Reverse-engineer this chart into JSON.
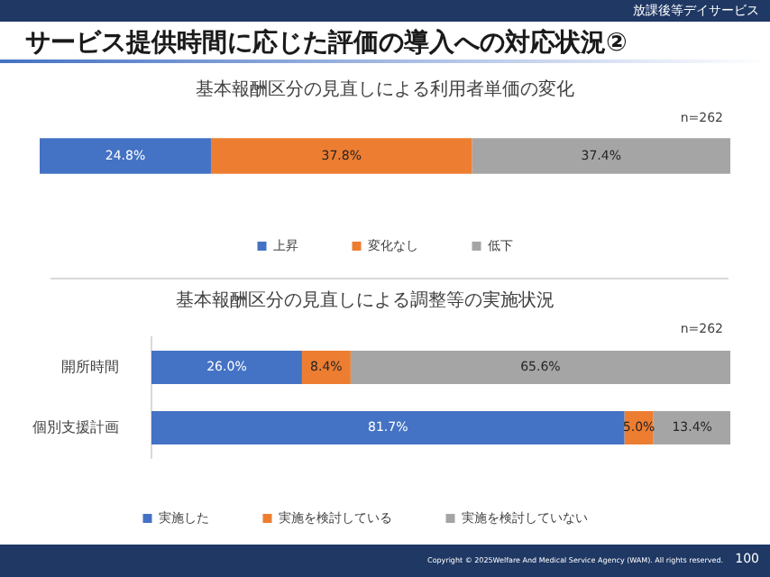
{
  "chart_data": [
    {
      "type": "other",
      "title": "サービス提供時間に応じた評価の導入への対応状況②",
      "annotations": [
        "放課後等デイサービス",
        "Copyright © 2025Welfare And Medical Service Agency (WAM). All rights reserved.",
        "100"
      ]
    },
    {
      "type": "bar",
      "orientation": "horizontal",
      "stacked": true,
      "title": "基本報酬区分の見直しによる利用者単価の変化",
      "categories": [
        null
      ],
      "xlim": [
        0,
        100
      ],
      "legend": "bottom",
      "tick_labels": false,
      "annotations": [
        "n=262"
      ],
      "series": [
        {
          "name": "上昇",
          "color": "#4472c4",
          "values": [
            24.8
          ],
          "value_labels": [
            "24.8%"
          ]
        },
        {
          "name": "変化なし",
          "color": "#ed7d31",
          "values": [
            37.8
          ],
          "value_labels": [
            "37.8%"
          ]
        },
        {
          "name": "低下",
          "color": "#a5a5a5",
          "values": [
            37.4
          ],
          "value_labels": [
            "37.4%"
          ]
        }
      ]
    },
    {
      "type": "bar",
      "orientation": "horizontal",
      "stacked": true,
      "title": "基本報酬区分の見直しによる調整等の実施状況",
      "categories": [
        "開所時間",
        "個別支援計画"
      ],
      "xlim": [
        0,
        100
      ],
      "legend": "bottom",
      "tick_labels": "y",
      "annotations": [
        "n=262"
      ],
      "series": [
        {
          "name": "実施した",
          "color": "#4472c4",
          "values": [
            26.0,
            81.7
          ],
          "value_labels": [
            "26.0%",
            "81.7%"
          ]
        },
        {
          "name": "実施を検討している",
          "color": "#ed7d31",
          "values": [
            8.4,
            5.0
          ],
          "value_labels": [
            "8.4%",
            "5.0%"
          ]
        },
        {
          "name": "実施を検討していない",
          "color": "#a5a5a5",
          "values": [
            65.6,
            13.4
          ],
          "value_labels": [
            "65.6%",
            "13.4%"
          ]
        }
      ]
    }
  ]
}
